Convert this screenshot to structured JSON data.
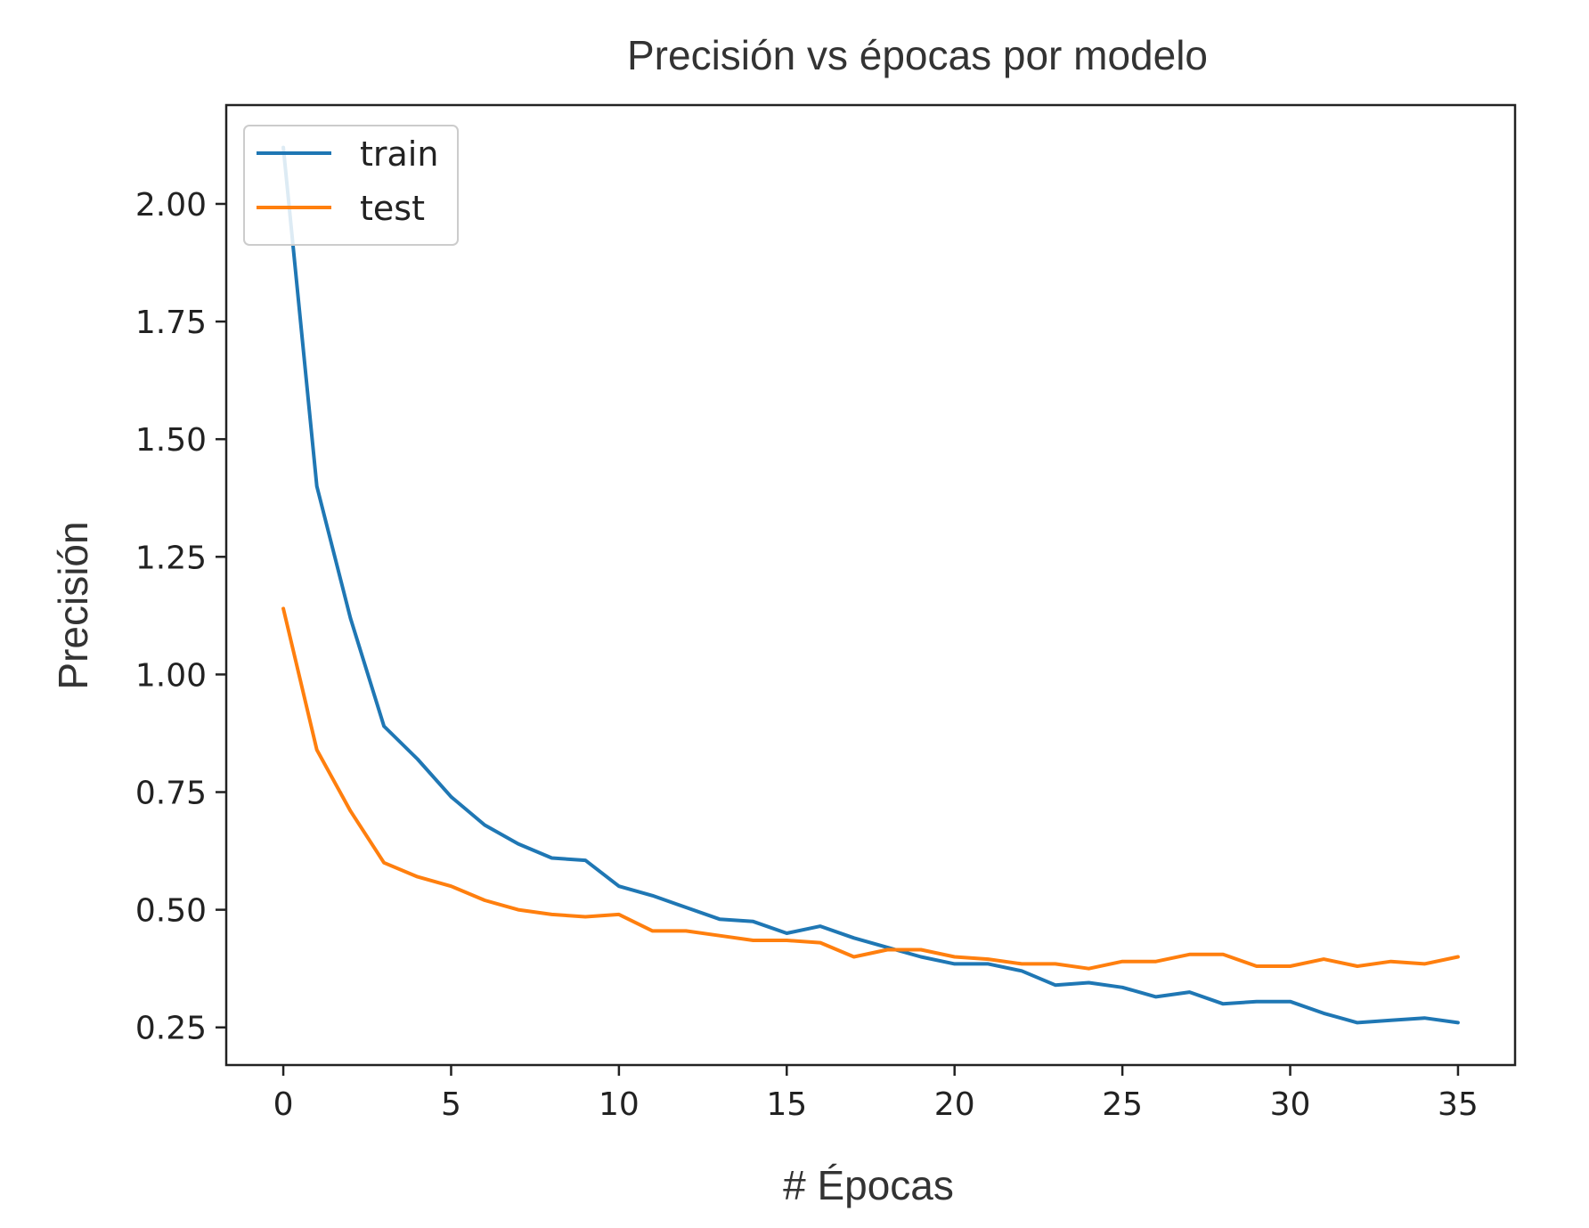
{
  "chart_data": {
    "type": "line",
    "title": "Precisión vs épocas por modelo",
    "xlabel": "# Épocas",
    "ylabel": "Precisión",
    "xlim": [
      -1.7,
      36.7
    ],
    "ylim": [
      0.17,
      2.21
    ],
    "xticks": [
      0,
      5,
      10,
      15,
      20,
      25,
      30,
      35
    ],
    "xtick_labels": [
      "0",
      "5",
      "10",
      "15",
      "20",
      "25",
      "30",
      "35"
    ],
    "yticks": [
      0.25,
      0.5,
      0.75,
      1.0,
      1.25,
      1.5,
      1.75,
      2.0
    ],
    "ytick_labels": [
      "0.25",
      "0.50",
      "0.75",
      "1.00",
      "1.25",
      "1.50",
      "1.75",
      "2.00"
    ],
    "grid": false,
    "legend": {
      "position": "top-left",
      "entries": [
        "train",
        "test"
      ]
    },
    "x": [
      0,
      1,
      2,
      3,
      4,
      5,
      6,
      7,
      8,
      9,
      10,
      11,
      12,
      13,
      14,
      15,
      16,
      17,
      18,
      19,
      20,
      21,
      22,
      23,
      24,
      25,
      26,
      27,
      28,
      29,
      30,
      31,
      32,
      33,
      34,
      35
    ],
    "series": [
      {
        "name": "train",
        "color": "#1f77b4",
        "values": [
          2.12,
          1.4,
          1.12,
          0.89,
          0.82,
          0.74,
          0.68,
          0.64,
          0.61,
          0.605,
          0.55,
          0.53,
          0.505,
          0.48,
          0.475,
          0.45,
          0.465,
          0.44,
          0.42,
          0.4,
          0.385,
          0.385,
          0.37,
          0.34,
          0.345,
          0.335,
          0.315,
          0.325,
          0.3,
          0.305,
          0.305,
          0.28,
          0.26,
          0.265,
          0.27,
          0.26
        ]
      },
      {
        "name": "test",
        "color": "#ff7f0e",
        "values": [
          1.14,
          0.84,
          0.71,
          0.6,
          0.57,
          0.55,
          0.52,
          0.5,
          0.49,
          0.485,
          0.49,
          0.455,
          0.455,
          0.445,
          0.435,
          0.435,
          0.43,
          0.4,
          0.415,
          0.415,
          0.4,
          0.395,
          0.385,
          0.385,
          0.375,
          0.39,
          0.39,
          0.405,
          0.405,
          0.38,
          0.38,
          0.395,
          0.38,
          0.39,
          0.385,
          0.4
        ]
      }
    ]
  }
}
